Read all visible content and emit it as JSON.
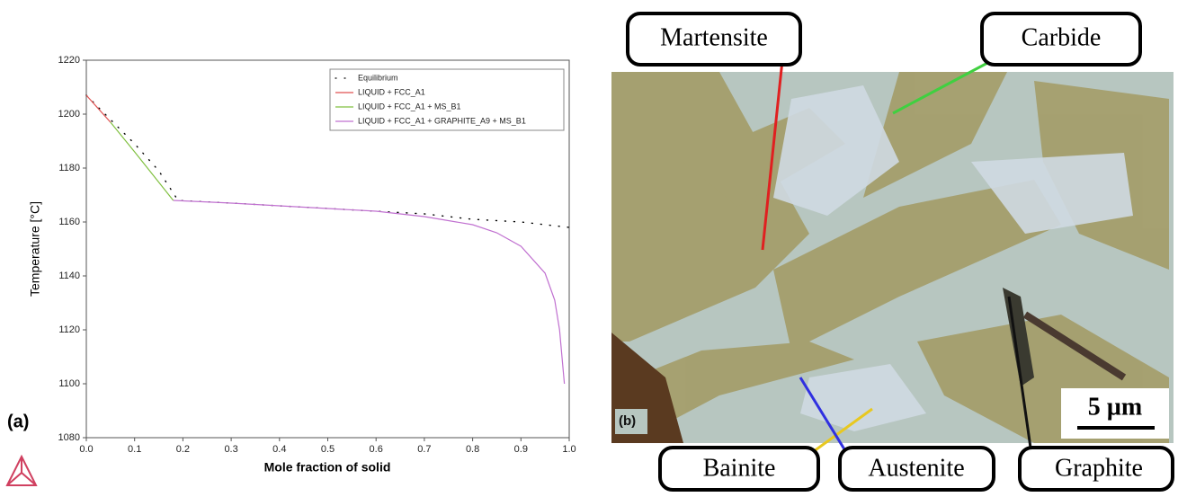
{
  "chart_data": {
    "type": "line",
    "xlabel": "Mole fraction of solid",
    "ylabel": "Temperature [°C]",
    "xlim": [
      0,
      1
    ],
    "ylim": [
      1080,
      1220
    ],
    "xticks": [
      {
        "value": 0,
        "label": "0.0"
      },
      0.1,
      0.2,
      0.3,
      0.4,
      0.5,
      0.6,
      0.7,
      0.8,
      0.9,
      {
        "value": 1,
        "label": "1.0"
      }
    ],
    "yticks": [
      1080,
      1100,
      1120,
      1140,
      1160,
      1180,
      1200,
      1220
    ],
    "legend": "upper right",
    "series": [
      {
        "name": "Equilibrium",
        "color": "#000000",
        "dash": "dotted",
        "x": [
          0,
          0.05,
          0.1,
          0.15,
          0.19,
          0.3,
          0.4,
          0.5,
          0.6,
          0.7,
          0.8,
          0.9,
          1.0
        ],
        "values": [
          1207,
          1198,
          1189,
          1179,
          1168,
          1167,
          1166,
          1165,
          1164,
          1163,
          1161,
          1160,
          1158
        ]
      },
      {
        "name": "LIQUID + FCC_A1",
        "color": "#e05050",
        "x": [
          0,
          0.05
        ],
        "values": [
          1207,
          1197
        ]
      },
      {
        "name": "LIQUID + FCC_A1 + MS_B1",
        "color": "#80c040",
        "x": [
          0.05,
          0.1,
          0.18
        ],
        "values": [
          1197,
          1186,
          1168
        ]
      },
      {
        "name": "LIQUID + FCC_A1 + GRAPHITE_A9 + MS_B1",
        "color": "#c070d0",
        "x": [
          0.18,
          0.3,
          0.4,
          0.5,
          0.6,
          0.7,
          0.8,
          0.85,
          0.9,
          0.95,
          0.97,
          0.98,
          0.99
        ],
        "values": [
          1168,
          1167,
          1166,
          1165,
          1164,
          1162,
          1159,
          1156,
          1151,
          1141,
          1131,
          1120,
          1100
        ]
      }
    ]
  },
  "figure": {
    "panel_a": "(a)",
    "panel_b": "(b)",
    "scale_bar": "5 µm",
    "labels": [
      "Martensite",
      "Carbide",
      "Bainite",
      "Austenite",
      "Graphite"
    ]
  }
}
